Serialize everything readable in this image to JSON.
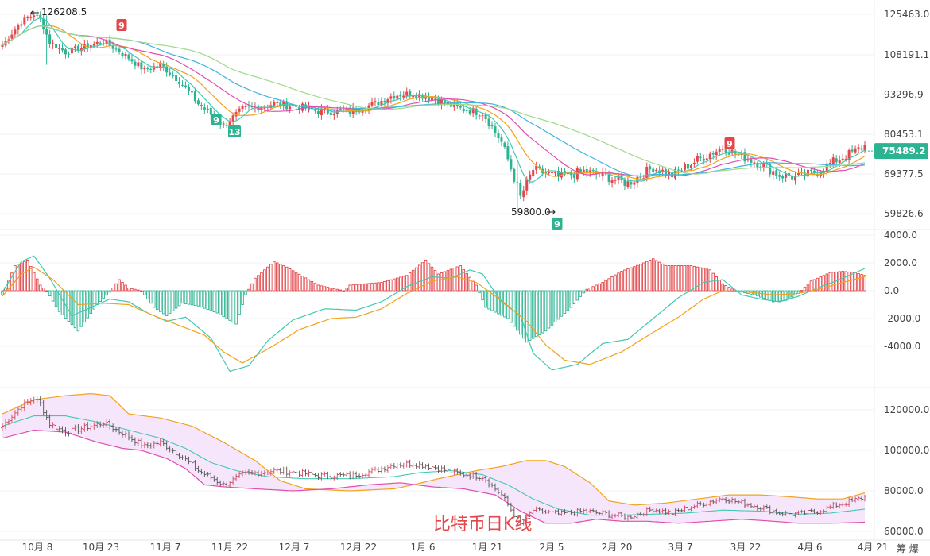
{
  "chart_data": [
    {
      "type": "candlestick",
      "panel": "price",
      "title": "",
      "y_ticks": [
        "125463.0",
        "108191.1",
        "93296.9",
        "80453.1",
        "69377.5",
        "59826.6"
      ],
      "last_price": "75489.2",
      "annotations": {
        "high_label": "126208.5",
        "low_label": "59800.0",
        "td_markers": [
          "9",
          "9",
          "13",
          "9",
          "9"
        ]
      },
      "colors": {
        "up": "#e2474b",
        "down": "#2eb392",
        "ma_short": "#41c9b0",
        "ma_mid": "#f2a21c",
        "ma_long1": "#e04fb0",
        "ma_long2": "#3fb4e0",
        "ma_long3": "#9fd98b",
        "price_tag": "#2eb392"
      },
      "anchors": [
        [
          0,
          112000
        ],
        [
          6,
          122000
        ],
        [
          10,
          125500
        ],
        [
          12,
          123000
        ],
        [
          15,
          113000
        ],
        [
          20,
          109000
        ],
        [
          28,
          112000
        ],
        [
          32,
          113500
        ],
        [
          38,
          108500
        ],
        [
          45,
          102000
        ],
        [
          50,
          104000
        ],
        [
          56,
          98000
        ],
        [
          62,
          90000
        ],
        [
          70,
          83000
        ],
        [
          76,
          88000
        ],
        [
          86,
          90000
        ],
        [
          94,
          89000
        ],
        [
          100,
          87500
        ],
        [
          110,
          87500
        ],
        [
          118,
          90000
        ],
        [
          124,
          93000
        ],
        [
          130,
          93500
        ],
        [
          136,
          92000
        ],
        [
          144,
          88500
        ],
        [
          152,
          87000
        ],
        [
          158,
          78000
        ],
        [
          164,
          63500
        ],
        [
          168,
          70500
        ],
        [
          176,
          68500
        ],
        [
          184,
          70000
        ],
        [
          192,
          68500
        ],
        [
          198,
          67000
        ],
        [
          206,
          71000
        ],
        [
          212,
          69000
        ],
        [
          220,
          73000
        ],
        [
          228,
          76500
        ],
        [
          234,
          74000
        ],
        [
          240,
          72000
        ],
        [
          246,
          69000
        ],
        [
          252,
          68500
        ],
        [
          258,
          70000
        ],
        [
          264,
          73000
        ],
        [
          270,
          75500
        ],
        [
          273,
          77000
        ]
      ]
    },
    {
      "type": "macd",
      "panel": "indicator",
      "y_ticks": [
        "4000.0",
        "2000.0",
        "0.0",
        "-2000.0",
        "-4000.0"
      ],
      "ylim": [
        -4000,
        4000
      ],
      "colors": {
        "up": "#e2474b",
        "down": "#2eb392",
        "dif": "#41c9b0",
        "dea": "#f2a21c"
      },
      "histogram_anchors": [
        [
          0,
          -300
        ],
        [
          4,
          1800
        ],
        [
          8,
          2200
        ],
        [
          12,
          400
        ],
        [
          14,
          0
        ],
        [
          18,
          -1500
        ],
        [
          24,
          -2900
        ],
        [
          30,
          -1000
        ],
        [
          34,
          -100
        ],
        [
          37,
          800
        ],
        [
          40,
          200
        ],
        [
          44,
          0
        ],
        [
          48,
          -1200
        ],
        [
          52,
          -1800
        ],
        [
          57,
          -900
        ],
        [
          62,
          -1100
        ],
        [
          68,
          -1600
        ],
        [
          74,
          -2400
        ],
        [
          77,
          -300
        ],
        [
          80,
          900
        ],
        [
          86,
          2100
        ],
        [
          90,
          1700
        ],
        [
          100,
          400
        ],
        [
          108,
          0
        ],
        [
          110,
          400
        ],
        [
          120,
          600
        ],
        [
          128,
          1100
        ],
        [
          134,
          2200
        ],
        [
          138,
          1200
        ],
        [
          145,
          1800
        ],
        [
          150,
          400
        ],
        [
          153,
          -1200
        ],
        [
          160,
          -2000
        ],
        [
          166,
          -3700
        ],
        [
          172,
          -2900
        ],
        [
          180,
          -1200
        ],
        [
          185,
          100
        ],
        [
          190,
          600
        ],
        [
          196,
          1400
        ],
        [
          202,
          1900
        ],
        [
          206,
          2300
        ],
        [
          210,
          1800
        ],
        [
          218,
          1800
        ],
        [
          224,
          1500
        ],
        [
          228,
          500
        ],
        [
          232,
          0
        ],
        [
          238,
          -300
        ],
        [
          244,
          -800
        ],
        [
          248,
          -700
        ],
        [
          252,
          -200
        ],
        [
          256,
          700
        ],
        [
          262,
          1300
        ],
        [
          266,
          1400
        ],
        [
          270,
          1300
        ],
        [
          273,
          1100
        ]
      ],
      "dif_anchors": [
        [
          0,
          -100
        ],
        [
          6,
          2100
        ],
        [
          10,
          2500
        ],
        [
          15,
          900
        ],
        [
          22,
          -1800
        ],
        [
          28,
          -1200
        ],
        [
          34,
          -600
        ],
        [
          40,
          -800
        ],
        [
          46,
          -1600
        ],
        [
          52,
          -2200
        ],
        [
          58,
          -1900
        ],
        [
          66,
          -3400
        ],
        [
          72,
          -5800
        ],
        [
          78,
          -5400
        ],
        [
          84,
          -3600
        ],
        [
          92,
          -2100
        ],
        [
          102,
          -1300
        ],
        [
          112,
          -1400
        ],
        [
          120,
          -800
        ],
        [
          128,
          300
        ],
        [
          136,
          1000
        ],
        [
          142,
          900
        ],
        [
          148,
          1500
        ],
        [
          152,
          1200
        ],
        [
          158,
          -800
        ],
        [
          164,
          -1800
        ],
        [
          168,
          -4500
        ],
        [
          174,
          -5700
        ],
        [
          182,
          -5300
        ],
        [
          190,
          -3800
        ],
        [
          198,
          -3500
        ],
        [
          206,
          -2000
        ],
        [
          214,
          -500
        ],
        [
          222,
          600
        ],
        [
          228,
          800
        ],
        [
          234,
          -300
        ],
        [
          240,
          -600
        ],
        [
          246,
          -800
        ],
        [
          252,
          -400
        ],
        [
          258,
          200
        ],
        [
          264,
          700
        ],
        [
          270,
          1300
        ],
        [
          273,
          1600
        ]
      ],
      "dea_anchors": [
        [
          0,
          -400
        ],
        [
          6,
          1200
        ],
        [
          10,
          1700
        ],
        [
          16,
          800
        ],
        [
          24,
          -1000
        ],
        [
          32,
          -900
        ],
        [
          40,
          -1000
        ],
        [
          48,
          -1800
        ],
        [
          56,
          -2500
        ],
        [
          64,
          -3200
        ],
        [
          70,
          -4400
        ],
        [
          76,
          -5200
        ],
        [
          84,
          -4200
        ],
        [
          94,
          -2800
        ],
        [
          104,
          -2000
        ],
        [
          112,
          -1900
        ],
        [
          120,
          -1300
        ],
        [
          128,
          -200
        ],
        [
          136,
          700
        ],
        [
          144,
          1000
        ],
        [
          150,
          600
        ],
        [
          158,
          -700
        ],
        [
          166,
          -2200
        ],
        [
          172,
          -3900
        ],
        [
          178,
          -5000
        ],
        [
          186,
          -5300
        ],
        [
          196,
          -4400
        ],
        [
          206,
          -3000
        ],
        [
          214,
          -1900
        ],
        [
          222,
          -600
        ],
        [
          228,
          0
        ],
        [
          236,
          -100
        ],
        [
          244,
          -300
        ],
        [
          252,
          -200
        ],
        [
          260,
          200
        ],
        [
          266,
          600
        ],
        [
          273,
          1000
        ]
      ]
    },
    {
      "type": "bollinger_ohlc",
      "panel": "bands",
      "y_ticks": [
        "120000.0",
        "100000.0",
        "80000.0",
        "60000.0"
      ],
      "ylim": [
        58000,
        128000
      ],
      "colors": {
        "upper": "#f2a21c",
        "lower": "#e04fb0",
        "mid": "#41c9b0",
        "fill": "#f5e6fb",
        "bars": "#555555"
      },
      "x_tick_labels": [
        "10月 8",
        "10月 23",
        "11月 7",
        "11月 22",
        "12月 7",
        "12月 22",
        "1月 6",
        "1月 21",
        "2月 5",
        "2月 20",
        "3月 7",
        "3月 22",
        "4月 6",
        "4月 21"
      ],
      "upper_anchors": [
        [
          0,
          118000
        ],
        [
          10,
          125000
        ],
        [
          20,
          127000
        ],
        [
          28,
          128000
        ],
        [
          34,
          127000
        ],
        [
          40,
          118000
        ],
        [
          50,
          116000
        ],
        [
          60,
          112000
        ],
        [
          70,
          104000
        ],
        [
          80,
          95000
        ],
        [
          88,
          85000
        ],
        [
          96,
          81000
        ],
        [
          110,
          80000
        ],
        [
          124,
          81000
        ],
        [
          130,
          83000
        ],
        [
          138,
          86000
        ],
        [
          150,
          90000
        ],
        [
          158,
          92000
        ],
        [
          166,
          95000
        ],
        [
          172,
          95000
        ],
        [
          178,
          92000
        ],
        [
          186,
          84000
        ],
        [
          192,
          75000
        ],
        [
          200,
          73000
        ],
        [
          210,
          74000
        ],
        [
          220,
          76000
        ],
        [
          230,
          78000
        ],
        [
          240,
          78000
        ],
        [
          250,
          77000
        ],
        [
          258,
          76000
        ],
        [
          266,
          76000
        ],
        [
          273,
          79000
        ]
      ],
      "lower_anchors": [
        [
          0,
          106000
        ],
        [
          10,
          110000
        ],
        [
          20,
          109000
        ],
        [
          30,
          104000
        ],
        [
          38,
          101000
        ],
        [
          44,
          100000
        ],
        [
          52,
          96000
        ],
        [
          58,
          91000
        ],
        [
          64,
          83000
        ],
        [
          70,
          82000
        ],
        [
          80,
          81000
        ],
        [
          92,
          80000
        ],
        [
          104,
          81000
        ],
        [
          116,
          83000
        ],
        [
          126,
          84000
        ],
        [
          136,
          82000
        ],
        [
          146,
          81000
        ],
        [
          156,
          78000
        ],
        [
          164,
          70000
        ],
        [
          172,
          64000
        ],
        [
          180,
          64000
        ],
        [
          188,
          66000
        ],
        [
          196,
          65000
        ],
        [
          204,
          65000
        ],
        [
          214,
          64000
        ],
        [
          224,
          65000
        ],
        [
          234,
          66000
        ],
        [
          244,
          65000
        ],
        [
          252,
          64000
        ],
        [
          262,
          64000
        ],
        [
          273,
          64500
        ]
      ],
      "mid_anchors": [
        [
          0,
          112000
        ],
        [
          10,
          117000
        ],
        [
          20,
          117000
        ],
        [
          30,
          114000
        ],
        [
          40,
          110000
        ],
        [
          50,
          106000
        ],
        [
          58,
          101000
        ],
        [
          66,
          94000
        ],
        [
          74,
          90000
        ],
        [
          84,
          87000
        ],
        [
          96,
          86000
        ],
        [
          110,
          86000
        ],
        [
          124,
          87000
        ],
        [
          132,
          89000
        ],
        [
          142,
          90000
        ],
        [
          152,
          88000
        ],
        [
          160,
          83000
        ],
        [
          168,
          76000
        ],
        [
          176,
          71000
        ],
        [
          186,
          68000
        ],
        [
          196,
          68000
        ],
        [
          206,
          68500
        ],
        [
          216,
          69000
        ],
        [
          228,
          70500
        ],
        [
          240,
          70000
        ],
        [
          252,
          68500
        ],
        [
          262,
          69000
        ],
        [
          273,
          71000
        ]
      ]
    }
  ],
  "watermark": "比特币日K线",
  "corner_label": "筹 爆"
}
